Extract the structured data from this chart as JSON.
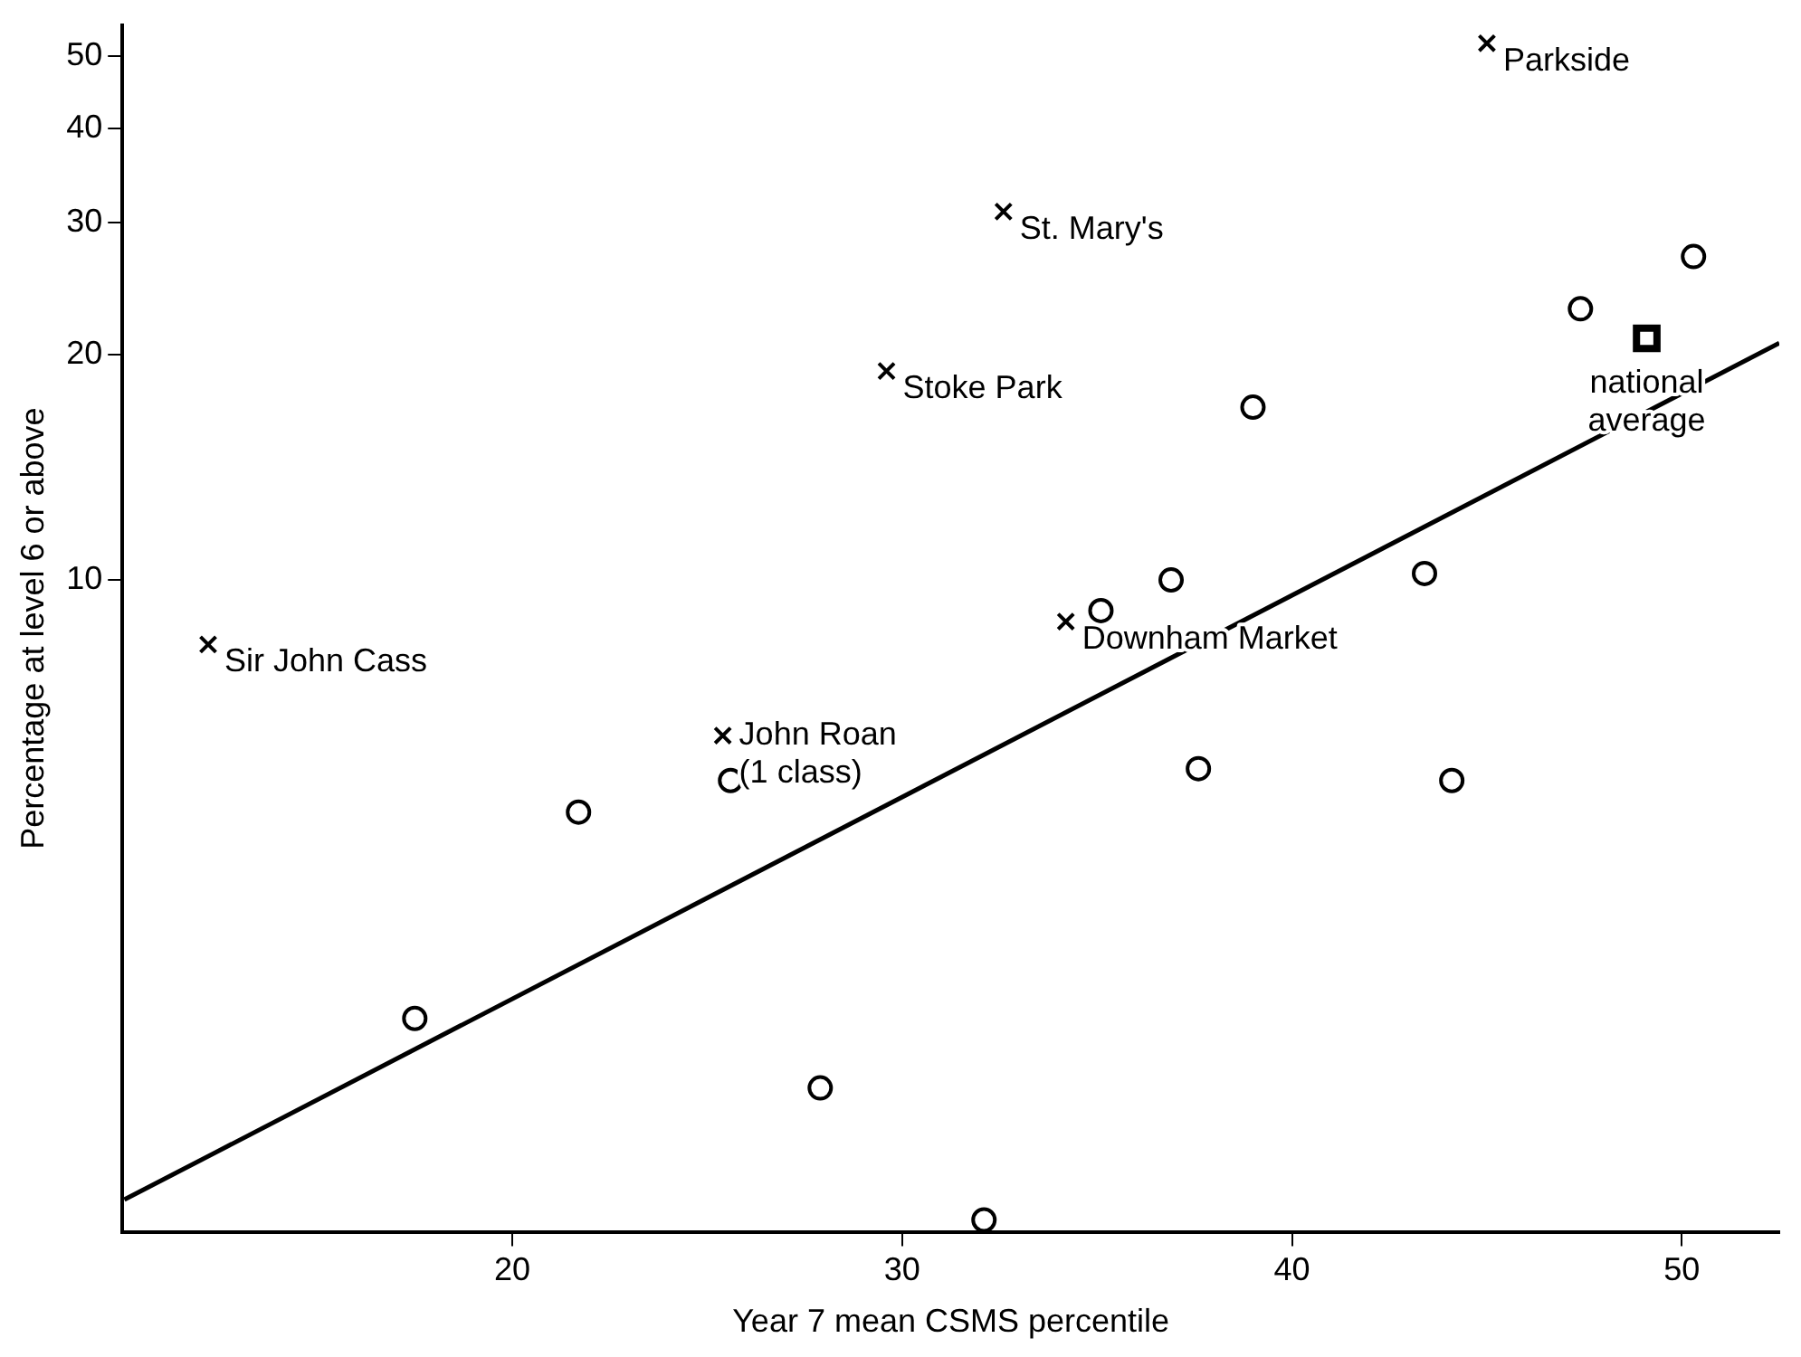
{
  "chart_data": {
    "type": "scatter",
    "xlabel": "Year 7 mean CSMS percentile",
    "ylabel": "Percentage at level 6 or above",
    "log": "y",
    "xlim": [
      10,
      52.5
    ],
    "xticks": [
      20,
      30,
      40,
      50
    ],
    "ylim": [
      1.35,
      55
    ],
    "yticks": [
      10,
      20,
      30,
      40,
      50
    ],
    "grid": false,
    "legend": false,
    "series": [
      {
        "color": "#000000",
        "marker": "cross",
        "x": [
          45.0,
          32.6,
          29.6,
          12.2,
          25.4,
          34.2
        ],
        "values": [
          52,
          31,
          19,
          8.2,
          6.2,
          8.8
        ]
      },
      {
        "color": "#000000",
        "marker": "circle",
        "x": [
          17.5,
          21.7,
          25.6,
          27.9,
          32.1,
          35.1,
          36.9,
          37.6,
          39.0,
          43.4,
          44.1,
          47.4,
          50.3
        ],
        "values": [
          2.6,
          4.9,
          5.4,
          2.1,
          1.4,
          9.1,
          10,
          5.6,
          17,
          10.2,
          5.4,
          23,
          27
        ]
      },
      {
        "color": "#000000",
        "marker": "square",
        "x": [
          49.1
        ],
        "values": [
          21
        ]
      },
      {
        "type": "line",
        "color": "#000000",
        "marker": "none",
        "line_style": "solid",
        "x": [
          10.05,
          52.5
        ],
        "values": [
          1.49,
          20.7
        ]
      }
    ],
    "annotations": [
      {
        "text": "Parkside",
        "x": 45.0,
        "y": 52
      },
      {
        "text": "St. Mary's",
        "x": 32.6,
        "y": 31
      },
      {
        "text": "Stoke Park",
        "x": 29.6,
        "y": 19
      },
      {
        "text": "Sir John Cass",
        "x": 12.2,
        "y": 8.2
      },
      {
        "text": "John Roan\n(1 class)",
        "x": 25.4,
        "y": 6.2
      },
      {
        "text": "Downham Market",
        "x": 34.2,
        "y": 8.8
      },
      {
        "text": "national\naverage",
        "x": 49.1,
        "y": 21
      }
    ]
  }
}
